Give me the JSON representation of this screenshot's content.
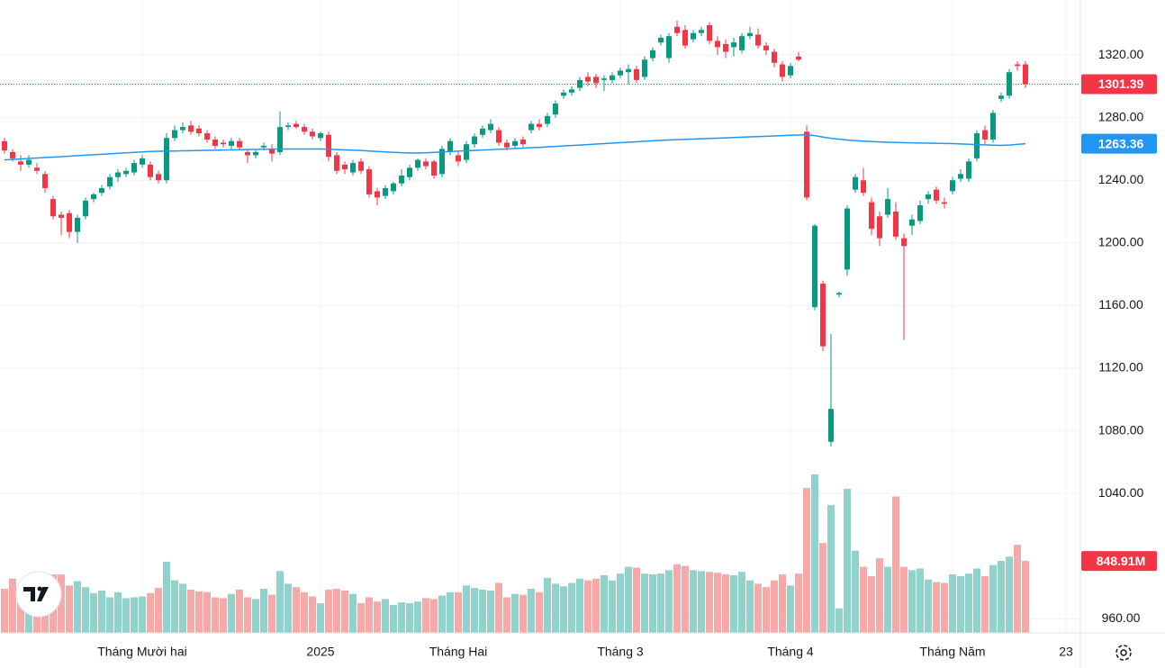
{
  "chart_data": {
    "type": "candlestick",
    "up_color": "#089981",
    "down_color": "#f23645",
    "candles": [
      [
        1265,
        1267,
        1257,
        1259
      ],
      [
        1258,
        1260,
        1252,
        1254
      ],
      [
        1252,
        1256,
        1246,
        1250
      ],
      [
        1250,
        1256,
        1248,
        1253
      ],
      [
        1248,
        1251,
        1244,
        1246
      ],
      [
        1244,
        1246,
        1232,
        1235
      ],
      [
        1228,
        1230,
        1215,
        1217
      ],
      [
        1218,
        1220,
        1205,
        1216
      ],
      [
        1219,
        1221,
        1203,
        1207
      ],
      [
        1207,
        1218,
        1200,
        1216
      ],
      [
        1217,
        1229,
        1215,
        1227
      ],
      [
        1228,
        1232,
        1226,
        1231
      ],
      [
        1232,
        1237,
        1230,
        1235
      ],
      [
        1236,
        1244,
        1234,
        1242
      ],
      [
        1242,
        1247,
        1239,
        1245
      ],
      [
        1244,
        1248,
        1242,
        1246
      ],
      [
        1245,
        1253,
        1243,
        1251
      ],
      [
        1250,
        1256,
        1248,
        1254
      ],
      [
        1250,
        1252,
        1240,
        1242
      ],
      [
        1244,
        1246,
        1238,
        1240
      ],
      [
        1240,
        1270,
        1238,
        1267
      ],
      [
        1267,
        1275,
        1265,
        1272
      ],
      [
        1272,
        1277,
        1270,
        1274
      ],
      [
        1275,
        1278,
        1269,
        1271
      ],
      [
        1273,
        1275,
        1268,
        1270
      ],
      [
        1270,
        1272,
        1264,
        1266
      ],
      [
        1266,
        1268,
        1260,
        1262
      ],
      [
        1264,
        1266,
        1261,
        1263
      ],
      [
        1262,
        1267,
        1260,
        1265
      ],
      [
        1265,
        1267,
        1259,
        1261
      ],
      [
        1258,
        1260,
        1251,
        1256
      ],
      [
        1256,
        1259,
        1254,
        1258
      ],
      [
        1261,
        1264,
        1259,
        1262
      ],
      [
        1260,
        1263,
        1252,
        1257
      ],
      [
        1258,
        1284,
        1256,
        1274
      ],
      [
        1274,
        1277,
        1272,
        1275
      ],
      [
        1276,
        1278,
        1273,
        1274
      ],
      [
        1274,
        1276,
        1269,
        1271
      ],
      [
        1271,
        1273,
        1266,
        1268
      ],
      [
        1267,
        1271,
        1265,
        1270
      ],
      [
        1269,
        1271,
        1252,
        1255
      ],
      [
        1256,
        1258,
        1244,
        1246
      ],
      [
        1250,
        1252,
        1244,
        1247
      ],
      [
        1245,
        1253,
        1243,
        1251
      ],
      [
        1252,
        1254,
        1244,
        1246
      ],
      [
        1247,
        1249,
        1229,
        1231
      ],
      [
        1233,
        1235,
        1224,
        1229
      ],
      [
        1230,
        1237,
        1228,
        1235
      ],
      [
        1233,
        1239,
        1231,
        1238
      ],
      [
        1238,
        1247,
        1236,
        1243
      ],
      [
        1242,
        1250,
        1240,
        1248
      ],
      [
        1248,
        1254,
        1246,
        1253
      ],
      [
        1252,
        1254,
        1247,
        1249
      ],
      [
        1252,
        1253,
        1241,
        1243
      ],
      [
        1244,
        1262,
        1242,
        1260
      ],
      [
        1258,
        1267,
        1256,
        1265
      ],
      [
        1256,
        1258,
        1249,
        1252
      ],
      [
        1253,
        1265,
        1251,
        1263
      ],
      [
        1263,
        1270,
        1261,
        1268
      ],
      [
        1269,
        1275,
        1267,
        1273
      ],
      [
        1272,
        1279,
        1270,
        1276
      ],
      [
        1272,
        1274,
        1262,
        1264
      ],
      [
        1264,
        1266,
        1259,
        1261
      ],
      [
        1262,
        1267,
        1260,
        1265
      ],
      [
        1266,
        1268,
        1261,
        1263
      ],
      [
        1272,
        1278,
        1270,
        1276
      ],
      [
        1276,
        1279,
        1272,
        1274
      ],
      [
        1276,
        1283,
        1274,
        1281
      ],
      [
        1282,
        1291,
        1280,
        1289
      ],
      [
        1294,
        1298,
        1292,
        1296
      ],
      [
        1296,
        1300,
        1294,
        1298
      ],
      [
        1299,
        1306,
        1297,
        1304
      ],
      [
        1306,
        1309,
        1300,
        1303
      ],
      [
        1306,
        1308,
        1299,
        1302
      ],
      [
        1304,
        1307,
        1297,
        1305
      ],
      [
        1304,
        1309,
        1302,
        1307
      ],
      [
        1307,
        1312,
        1305,
        1310
      ],
      [
        1309,
        1314,
        1301,
        1311
      ],
      [
        1311,
        1313,
        1302,
        1304
      ],
      [
        1306,
        1319,
        1304,
        1317
      ],
      [
        1318,
        1325,
        1316,
        1323
      ],
      [
        1328,
        1333,
        1326,
        1331
      ],
      [
        1318,
        1334,
        1315,
        1332
      ],
      [
        1338,
        1342,
        1332,
        1334
      ],
      [
        1336,
        1339,
        1324,
        1326
      ],
      [
        1330,
        1336,
        1328,
        1334
      ],
      [
        1334,
        1338,
        1332,
        1336
      ],
      [
        1339,
        1341,
        1327,
        1329
      ],
      [
        1329,
        1332,
        1320,
        1325
      ],
      [
        1327,
        1330,
        1318,
        1322
      ],
      [
        1325,
        1331,
        1319,
        1328
      ],
      [
        1323,
        1334,
        1321,
        1332
      ],
      [
        1332,
        1338,
        1330,
        1334
      ],
      [
        1333,
        1337,
        1324,
        1326
      ],
      [
        1326,
        1328,
        1320,
        1323
      ],
      [
        1322,
        1324,
        1312,
        1315
      ],
      [
        1314,
        1316,
        1303,
        1306
      ],
      [
        1307,
        1315,
        1305,
        1313
      ],
      [
        1319,
        1322,
        1316,
        1317
      ],
      [
        1271,
        1275,
        1227,
        1229
      ],
      [
        1159,
        1212,
        1157,
        1211
      ],
      [
        1174,
        1176,
        1131,
        1134
      ],
      [
        1073,
        1142,
        1070,
        1094
      ],
      [
        1167,
        1169,
        1165,
        1168
      ],
      [
        1183,
        1224,
        1179,
        1222
      ],
      [
        1234,
        1244,
        1232,
        1242
      ],
      [
        1240,
        1248,
        1230,
        1232
      ],
      [
        1226,
        1229,
        1205,
        1209
      ],
      [
        1217,
        1220,
        1198,
        1203
      ],
      [
        1218,
        1235,
        1216,
        1228
      ],
      [
        1220,
        1226,
        1202,
        1204
      ],
      [
        1203,
        1206,
        1138,
        1198
      ],
      [
        1211,
        1218,
        1205,
        1215
      ],
      [
        1214,
        1227,
        1212,
        1224
      ],
      [
        1228,
        1233,
        1225,
        1231
      ],
      [
        1234,
        1236,
        1225,
        1227
      ],
      [
        1226,
        1229,
        1222,
        1225
      ],
      [
        1233,
        1242,
        1231,
        1240
      ],
      [
        1241,
        1247,
        1239,
        1244
      ],
      [
        1241,
        1254,
        1239,
        1252
      ],
      [
        1254,
        1272,
        1252,
        1270
      ],
      [
        1272,
        1275,
        1263,
        1266
      ],
      [
        1266,
        1285,
        1264,
        1283
      ],
      [
        1292,
        1296,
        1290,
        1294
      ],
      [
        1294,
        1311,
        1292,
        1309
      ],
      [
        1314,
        1316,
        1310,
        1313
      ],
      [
        1314,
        1316,
        1299,
        1301.39
      ]
    ],
    "ma": {
      "color": "#2196f3",
      "values": [
        1253.0,
        1253.3,
        1253.6,
        1253.9,
        1254.2,
        1254.5,
        1254.8,
        1255.1,
        1255.4,
        1255.7,
        1256.0,
        1256.3,
        1256.6,
        1256.9,
        1257.2,
        1257.5,
        1257.8,
        1258.1,
        1258.4,
        1258.5,
        1258.6,
        1258.7,
        1258.8,
        1258.9,
        1259.0,
        1259.1,
        1259.2,
        1259.3,
        1259.4,
        1259.5,
        1259.6,
        1259.7,
        1259.8,
        1259.9,
        1260.0,
        1260.0,
        1260.0,
        1260.0,
        1260.0,
        1260.0,
        1259.8,
        1259.6,
        1259.4,
        1259.2,
        1259.0,
        1258.7,
        1258.4,
        1258.1,
        1257.8,
        1257.6,
        1257.4,
        1257.4,
        1257.5,
        1257.8,
        1258.1,
        1258.4,
        1258.6,
        1258.8,
        1259.0,
        1259.3,
        1259.5,
        1259.8,
        1260.0,
        1260.3,
        1260.5,
        1260.8,
        1261.0,
        1261.3,
        1261.6,
        1261.9,
        1262.2,
        1262.5,
        1262.8,
        1263.1,
        1263.4,
        1263.7,
        1264.0,
        1264.3,
        1264.6,
        1264.9,
        1265.2,
        1265.5,
        1265.7,
        1265.9,
        1266.1,
        1266.3,
        1266.5,
        1266.7,
        1266.9,
        1267.1,
        1267.3,
        1267.5,
        1267.7,
        1267.9,
        1268.1,
        1268.3,
        1268.5,
        1268.7,
        1268.9,
        1269.0,
        1268.5,
        1267.6,
        1266.8,
        1266.2,
        1265.7,
        1265.3,
        1265.0,
        1264.7,
        1264.5,
        1264.3,
        1264.1,
        1264.0,
        1263.9,
        1263.8,
        1263.7,
        1263.6,
        1263.5,
        1263.4,
        1263.2,
        1263.0,
        1262.8,
        1262.6,
        1262.4,
        1262.3,
        1262.5,
        1262.9,
        1263.36
      ]
    },
    "volume": {
      "up_color": "#92d2cc",
      "down_color": "#f7a9a7",
      "last_label": "848.91M",
      "values": [
        520,
        640,
        560,
        480,
        520,
        620,
        690,
        690,
        560,
        610,
        540,
        470,
        500,
        420,
        480,
        410,
        420,
        430,
        470,
        530,
        840,
        620,
        580,
        510,
        490,
        480,
        420,
        410,
        460,
        510,
        420,
        400,
        520,
        450,
        730,
        580,
        540,
        480,
        430,
        350,
        510,
        520,
        500,
        460,
        350,
        420,
        370,
        400,
        330,
        360,
        350,
        370,
        410,
        400,
        440,
        480,
        480,
        560,
        530,
        510,
        500,
        590,
        420,
        460,
        450,
        520,
        480,
        650,
        580,
        550,
        590,
        640,
        620,
        640,
        680,
        620,
        700,
        780,
        770,
        700,
        690,
        700,
        740,
        810,
        790,
        740,
        730,
        720,
        710,
        690,
        680,
        720,
        620,
        580,
        540,
        620,
        690,
        560,
        700,
        1710,
        1870,
        1060,
        1510,
        290,
        1700,
        970,
        780,
        670,
        880,
        780,
        1610,
        780,
        740,
        760,
        630,
        600,
        590,
        690,
        670,
        700,
        760,
        670,
        800,
        850,
        900,
        1040,
        848.91
      ]
    },
    "ylim": [
      951,
      1355.1
    ],
    "yticks": [
      {
        "value": 960,
        "label": "960.00"
      },
      {
        "value": 1040,
        "label": "1040.00"
      },
      {
        "value": 1080,
        "label": "1080.00"
      },
      {
        "value": 1120,
        "label": "1120.00"
      },
      {
        "value": 1160,
        "label": "1160.00"
      },
      {
        "value": 1200,
        "label": "1200.00"
      },
      {
        "value": 1240,
        "label": "1240.00"
      },
      {
        "value": 1280,
        "label": "1280.00"
      },
      {
        "value": 1320,
        "label": "1320.00"
      }
    ],
    "xticks": [
      {
        "value": 17,
        "label": "Tháng Mười hai"
      },
      {
        "value": 39,
        "label": "2025"
      },
      {
        "value": 56,
        "label": "Tháng Hai"
      },
      {
        "value": 76,
        "label": "Tháng 3"
      },
      {
        "value": 97,
        "label": "Tháng 4"
      },
      {
        "value": 117,
        "label": "Tháng Năm"
      },
      {
        "value": 131,
        "label": "23"
      }
    ],
    "grid": true
  }
}
